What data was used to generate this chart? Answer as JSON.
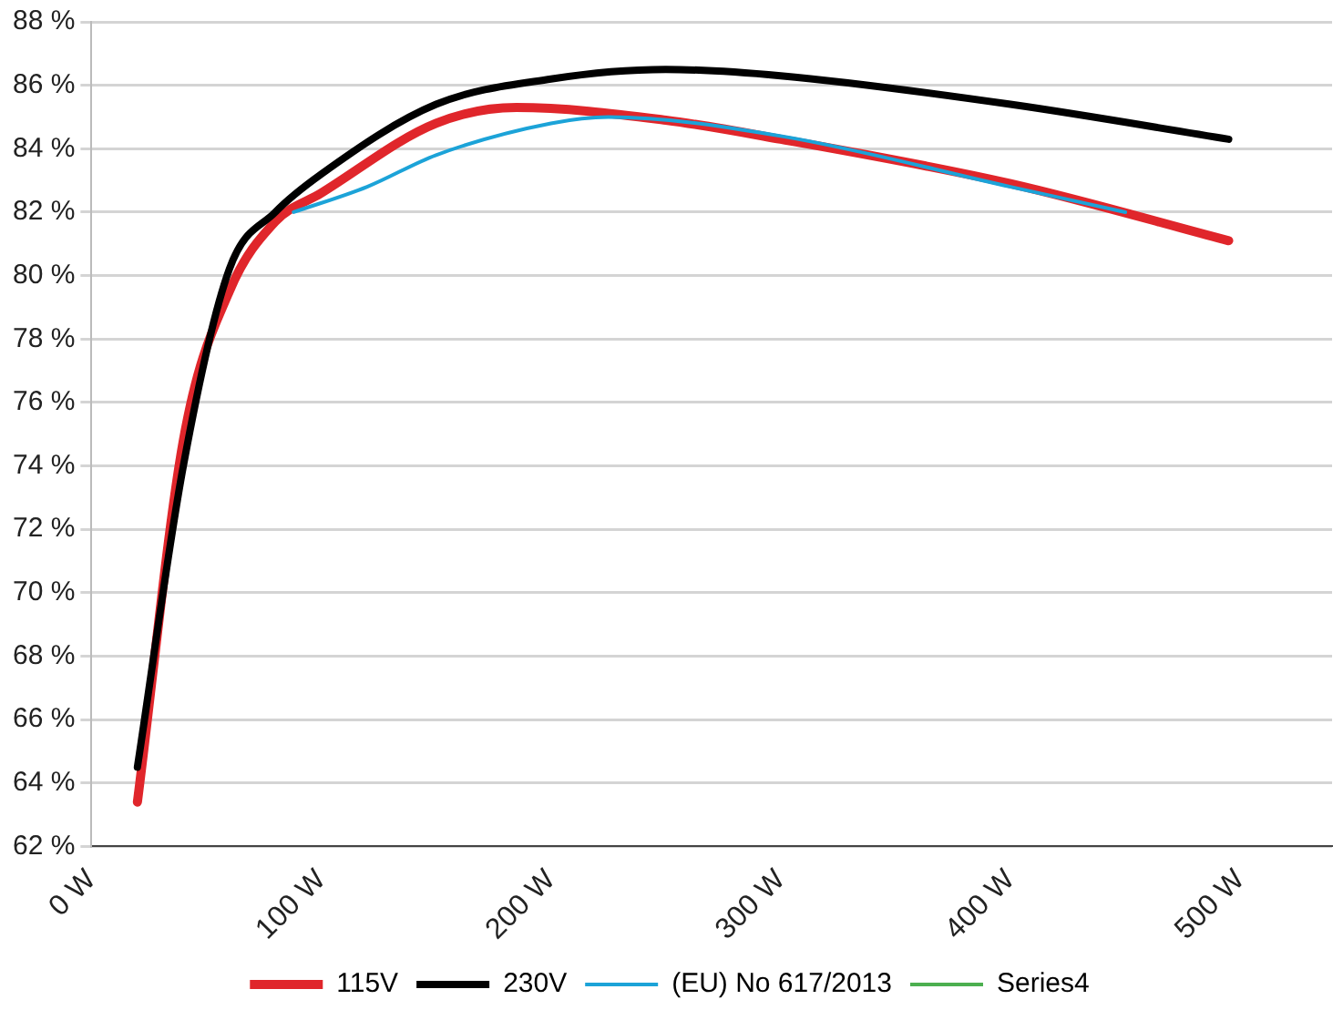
{
  "chart_data": {
    "type": "line",
    "xlim": [
      0,
      540
    ],
    "ylim": [
      62,
      88
    ],
    "xticks": [
      {
        "value": 0,
        "label": "0 W"
      },
      {
        "value": 100,
        "label": "100 W"
      },
      {
        "value": 200,
        "label": "200 W"
      },
      {
        "value": 300,
        "label": "300 W"
      },
      {
        "value": 400,
        "label": "400 W"
      },
      {
        "value": 500,
        "label": "500 W"
      }
    ],
    "yticks": [
      {
        "value": 62,
        "label": "62 %"
      },
      {
        "value": 64,
        "label": "64 %"
      },
      {
        "value": 66,
        "label": "66 %"
      },
      {
        "value": 68,
        "label": "68 %"
      },
      {
        "value": 70,
        "label": "70 %"
      },
      {
        "value": 72,
        "label": "72 %"
      },
      {
        "value": 74,
        "label": "74 %"
      },
      {
        "value": 76,
        "label": "76 %"
      },
      {
        "value": 78,
        "label": "78 %"
      },
      {
        "value": 80,
        "label": "80 %"
      },
      {
        "value": 82,
        "label": "82 %"
      },
      {
        "value": 84,
        "label": "84 %"
      },
      {
        "value": 86,
        "label": "86 %"
      },
      {
        "value": 88,
        "label": "88 %"
      }
    ],
    "grid": "y",
    "legend": "bottom",
    "marker": "none",
    "line_style": "solid",
    "series": [
      {
        "name": "115V",
        "color": "#e0262b",
        "x": [
          20,
          40,
          60,
          80,
          100,
          150,
          185,
          250,
          300,
          400,
          495
        ],
        "values": [
          63.4,
          74.8,
          79.5,
          81.7,
          82.6,
          84.8,
          85.3,
          84.9,
          84.3,
          82.9,
          81.1
        ]
      },
      {
        "name": "230V",
        "color": "#000000",
        "x": [
          20,
          40,
          60,
          80,
          100,
          150,
          200,
          250,
          300,
          400,
          495
        ],
        "values": [
          64.5,
          74,
          80.2,
          82,
          83.2,
          85.4,
          86.2,
          86.5,
          86.3,
          85.4,
          84.3
        ]
      },
      {
        "name": "(EU) No 617/2013",
        "color": "#1ca3d8",
        "x": [
          88,
          120,
          150,
          200,
          225,
          300,
          400,
          450
        ],
        "values": [
          82,
          82.8,
          83.8,
          84.8,
          85,
          84.4,
          82.8,
          82
        ]
      },
      {
        "name": "Series4",
        "color": "#4caf50"
      }
    ]
  }
}
